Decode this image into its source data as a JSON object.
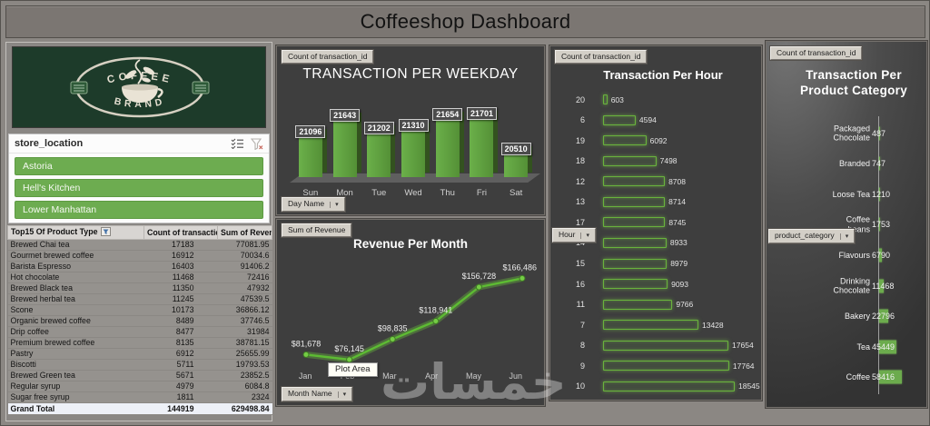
{
  "title_bar": {
    "title": "Coffeeshop Dashboard"
  },
  "watermark": "خمسات",
  "colors": {
    "accent_green": "#6dac50",
    "bar_green": "#5f9e3f",
    "glow_green": "#69b33c",
    "panel_dark": "#3e3e3e",
    "logo_green": "#1d3b2a"
  },
  "logo": {
    "top_text": "COFFEE",
    "bottom_text": "BRAND"
  },
  "slicer": {
    "title": "store_location",
    "items": [
      "Astoria",
      "Hell's Kitchen",
      "Lower Manhattan"
    ]
  },
  "table": {
    "headers": [
      "Top15 Of Product Type",
      "Count of transaction_id",
      "Sum of Revenue"
    ],
    "rows": [
      [
        "Brewed Chai tea",
        "17183",
        "77081.95"
      ],
      [
        "Gourmet brewed coffee",
        "16912",
        "70034.6"
      ],
      [
        "Barista Espresso",
        "16403",
        "91406.2"
      ],
      [
        "Hot chocolate",
        "11468",
        "72416"
      ],
      [
        "Brewed Black tea",
        "11350",
        "47932"
      ],
      [
        "Brewed herbal tea",
        "11245",
        "47539.5"
      ],
      [
        "Scone",
        "10173",
        "36866.12"
      ],
      [
        "Organic brewed coffee",
        "8489",
        "37746.5"
      ],
      [
        "Drip coffee",
        "8477",
        "31984"
      ],
      [
        "Premium brewed coffee",
        "8135",
        "38781.15"
      ],
      [
        "Pastry",
        "6912",
        "25655.99"
      ],
      [
        "Biscotti",
        "5711",
        "19793.53"
      ],
      [
        "Brewed Green tea",
        "5671",
        "23852.5"
      ],
      [
        "Regular syrup",
        "4979",
        "6084.8"
      ],
      [
        "Sugar free syrup",
        "1811",
        "2324"
      ]
    ],
    "grand_total": [
      "Grand Total",
      "144919",
      "629498.84"
    ]
  },
  "weekday_panel": {
    "field_button": "Count of transaction_id",
    "axis_button": "Day Name"
  },
  "month_panel": {
    "field_button": "Sum of Revenue",
    "axis_button": "Month Name",
    "tooltip": "Plot Area"
  },
  "hour_panel": {
    "field_button": "Count of transaction_id",
    "axis_button": "Hour"
  },
  "category_panel": {
    "field_button": "Count of transaction_id",
    "title_line1": "Transaction Per",
    "title_line2": "Product Category",
    "axis_button": "product_category"
  },
  "chart_data": [
    {
      "type": "bar",
      "title": "TRANSACTION PER WEEKDAY",
      "series_name": "Count of transaction_id",
      "categories": [
        "Sun",
        "Mon",
        "Tue",
        "Wed",
        "Thu",
        "Fri",
        "Sat"
      ],
      "values": [
        21096,
        21643,
        21202,
        21310,
        21654,
        21701,
        20510
      ],
      "ylim": [
        19650,
        21750
      ],
      "data_labels": true,
      "legend": "none"
    },
    {
      "type": "line",
      "title": "Revenue Per Month",
      "series_name": "Sum of Revenue",
      "categories": [
        "Jan",
        "Feb",
        "Mar",
        "Apr",
        "May",
        "Jun"
      ],
      "values": [
        81678,
        76145,
        98835,
        118941,
        156728,
        166486
      ],
      "value_labels": [
        "$81,678",
        "$76,145",
        "$98,835",
        "$118,941",
        "$156,728",
        "$166,486"
      ],
      "ylim": [
        70000,
        175000
      ],
      "grid": false,
      "legend": "none"
    },
    {
      "type": "bar",
      "orientation": "horizontal",
      "title": "Transaction Per Hour",
      "series_name": "Count of transaction_id",
      "categories": [
        "20",
        "6",
        "19",
        "18",
        "12",
        "13",
        "17",
        "14",
        "15",
        "16",
        "11",
        "7",
        "8",
        "9",
        "10"
      ],
      "values": [
        603,
        4594,
        6092,
        7498,
        8708,
        8714,
        8745,
        8933,
        8979,
        9093,
        9766,
        13428,
        17654,
        17764,
        18545
      ],
      "xlim": [
        0,
        18545
      ],
      "data_labels": true
    },
    {
      "type": "bar",
      "orientation": "horizontal",
      "title": "Transaction Per Product Category",
      "series_name": "Count of transaction_id",
      "categories": [
        "Packaged Chocolate",
        "Branded",
        "Loose Tea",
        "Coffee beans",
        "Flavours",
        "Drinking Chocolate",
        "Bakery",
        "Tea",
        "Coffee"
      ],
      "label_lines": [
        [
          "Packaged",
          "Chocolate"
        ],
        [
          "Branded"
        ],
        [
          "Loose Tea"
        ],
        [
          "Coffee",
          "beans"
        ],
        [
          "Flavours"
        ],
        [
          "Drinking",
          "Chocolate"
        ],
        [
          "Bakery"
        ],
        [
          "Tea"
        ],
        [
          "Coffee"
        ]
      ],
      "values": [
        487,
        747,
        1210,
        1753,
        6790,
        11468,
        22796,
        45449,
        58416
      ],
      "xlim": [
        0,
        58416
      ],
      "data_labels": true
    }
  ]
}
